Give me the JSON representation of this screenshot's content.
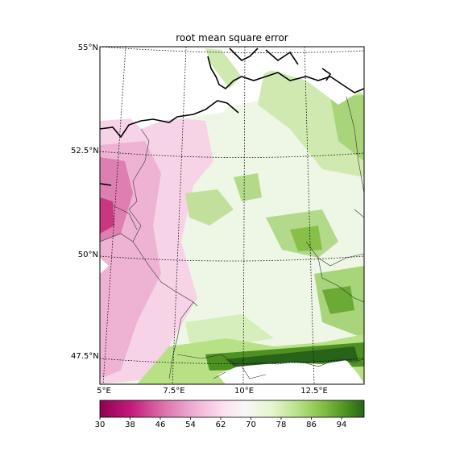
{
  "title": "root mean square error",
  "latitude_labels": [
    "55°N",
    "52.5°N",
    "50°N",
    "47.5°N"
  ],
  "longitude_labels": [
    "5°E",
    "7.5°E",
    "10°E",
    "12.5°E"
  ],
  "colorbar": {
    "ticks": [
      "30",
      "38",
      "46",
      "54",
      "62",
      "70",
      "78",
      "86",
      "94"
    ],
    "colormap": "PiYG",
    "min": 30,
    "max": 100
  },
  "colors": {
    "low": "#8e0152",
    "mid": "#f7f7f7",
    "high": "#276419"
  }
}
